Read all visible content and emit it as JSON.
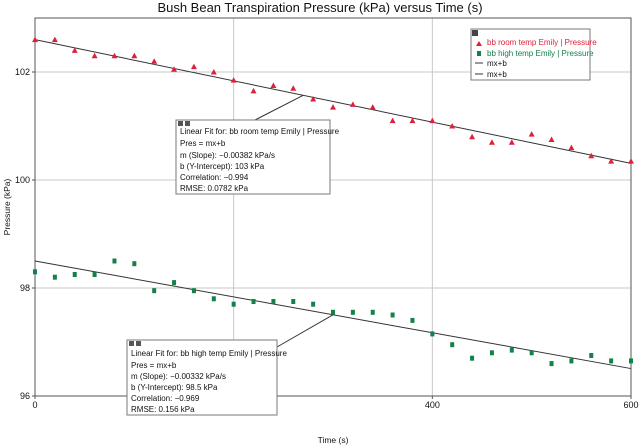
{
  "chart_data": {
    "type": "scatter",
    "title": "Bush Bean Transpiration Pressure (kPa) versus Time (s)",
    "xlabel": "Time (s)",
    "ylabel": "Pressure (kPa)",
    "xlim": [
      0,
      600
    ],
    "ylim": [
      96,
      103.0
    ],
    "x_ticks": [
      0,
      200,
      400,
      600
    ],
    "y_ticks": [
      96,
      98,
      100,
      102
    ],
    "grid": true,
    "legend_position": "top-right",
    "series": [
      {
        "name": "bb room temp Emily | Pressure",
        "marker": "triangle",
        "color": "#e0203a",
        "x": [
          0,
          20,
          40,
          60,
          80,
          100,
          120,
          140,
          160,
          180,
          200,
          220,
          240,
          260,
          280,
          300,
          320,
          340,
          360,
          380,
          400,
          420,
          440,
          460,
          480,
          500,
          520,
          540,
          560,
          580,
          600
        ],
        "y": [
          102.6,
          102.6,
          102.4,
          102.3,
          102.3,
          102.3,
          102.2,
          102.05,
          102.1,
          102.0,
          101.85,
          101.65,
          101.75,
          101.7,
          101.5,
          101.35,
          101.4,
          101.35,
          101.1,
          101.1,
          101.1,
          101.0,
          100.8,
          100.7,
          100.7,
          100.85,
          100.75,
          100.6,
          100.45,
          100.35,
          100.35
        ]
      },
      {
        "name": "bb high temp Emily | Pressure",
        "marker": "square",
        "color": "#14804a",
        "x": [
          0,
          20,
          40,
          60,
          80,
          100,
          120,
          140,
          160,
          180,
          200,
          220,
          240,
          260,
          280,
          300,
          320,
          340,
          360,
          380,
          400,
          420,
          440,
          460,
          480,
          500,
          520,
          540,
          560,
          580,
          600
        ],
        "y": [
          98.3,
          98.2,
          98.25,
          98.25,
          98.5,
          98.45,
          97.95,
          98.1,
          97.95,
          97.8,
          97.7,
          97.75,
          97.75,
          97.75,
          97.7,
          97.55,
          97.55,
          97.55,
          97.5,
          97.4,
          97.15,
          96.95,
          96.7,
          96.8,
          96.85,
          96.8,
          96.6,
          96.65,
          96.75,
          96.65,
          96.65
        ]
      }
    ],
    "fits": [
      {
        "name": "mx+b",
        "color": "#333333",
        "slope": -0.00382,
        "intercept": 102.6,
        "anchor_x": 270,
        "box": {
          "header": "Linear Fit for: bb room temp Emily | Pressure",
          "equation": "Pres = mx+b",
          "slope": "m (Slope): −0.00382 kPa/s",
          "intercept": "b (Y-Intercept): 103 kPa",
          "correlation": "Correlation: −0.994",
          "rmse": "RMSE: 0.0782 kPa"
        }
      },
      {
        "name": "mx+b",
        "color": "#333333",
        "slope": -0.00332,
        "intercept": 98.5,
        "anchor_x": 300,
        "box": {
          "header": "Linear Fit for: bb high temp Emily | Pressure",
          "equation": "Pres = mx+b",
          "slope": "m (Slope): −0.00332 kPa/s",
          "intercept": "b (Y-Intercept): 98.5 kPa",
          "correlation": "Correlation: −0.969",
          "rmse": "RMSE: 0.156 kPa"
        }
      }
    ]
  }
}
